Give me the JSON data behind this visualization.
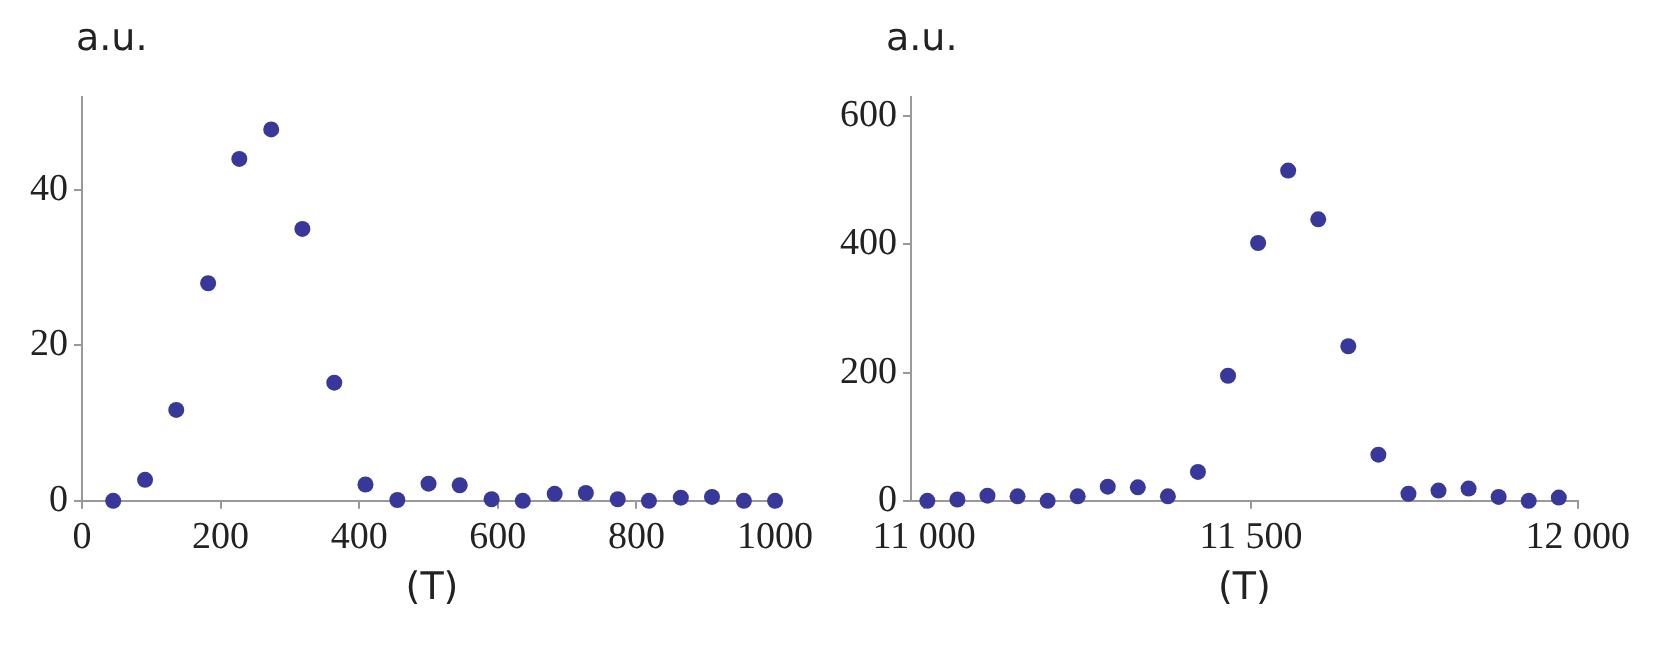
{
  "chart_data": [
    {
      "type": "scatter",
      "ylabel": "a.u.",
      "xlabel": "(T)",
      "marker": "circle",
      "grid": false,
      "legend": false,
      "xlim": [
        0,
        1010
      ],
      "xticks": [
        0,
        200,
        400,
        600,
        800,
        1000
      ],
      "ylim": [
        0,
        52
      ],
      "yticks": [
        0,
        20,
        40
      ],
      "series": [
        {
          "color": "#38389a",
          "x": [
            45,
            91,
            136,
            182,
            227,
            273,
            318,
            364,
            409,
            455,
            500,
            545,
            591,
            636,
            682,
            727,
            773,
            818,
            864,
            909,
            955,
            1000
          ],
          "values": [
            0,
            2.7,
            11.7,
            28,
            44,
            47.8,
            35,
            15.2,
            2.1,
            0.1,
            2.2,
            2.0,
            0.2,
            0,
            0.9,
            1.0,
            0.2,
            0,
            0.4,
            0.5,
            0,
            0
          ]
        }
      ]
    },
    {
      "type": "scatter",
      "ylabel": "a.u.",
      "xlabel": "(T)",
      "marker": "circle",
      "grid": false,
      "legend": false,
      "xlim": [
        10980,
        12000
      ],
      "xticks": [
        {
          "value": 11000,
          "label": "11 000"
        },
        {
          "value": 11500,
          "label": "11 500"
        },
        {
          "value": 12000,
          "label": "12 000"
        }
      ],
      "ylim": [
        0,
        630
      ],
      "yticks": [
        0,
        200,
        400,
        600
      ],
      "series": [
        {
          "color": "#38389a",
          "x": [
            11005,
            11051,
            11097,
            11143,
            11189,
            11235,
            11281,
            11327,
            11373,
            11419,
            11465,
            11511,
            11557,
            11603,
            11649,
            11695,
            11741,
            11787,
            11833,
            11879,
            11925,
            11971
          ],
          "values": [
            0,
            2,
            8,
            7,
            0,
            7,
            22,
            21,
            7,
            45,
            195,
            402,
            515,
            439,
            241,
            72,
            11,
            16,
            19,
            6,
            0,
            5
          ]
        }
      ]
    }
  ]
}
